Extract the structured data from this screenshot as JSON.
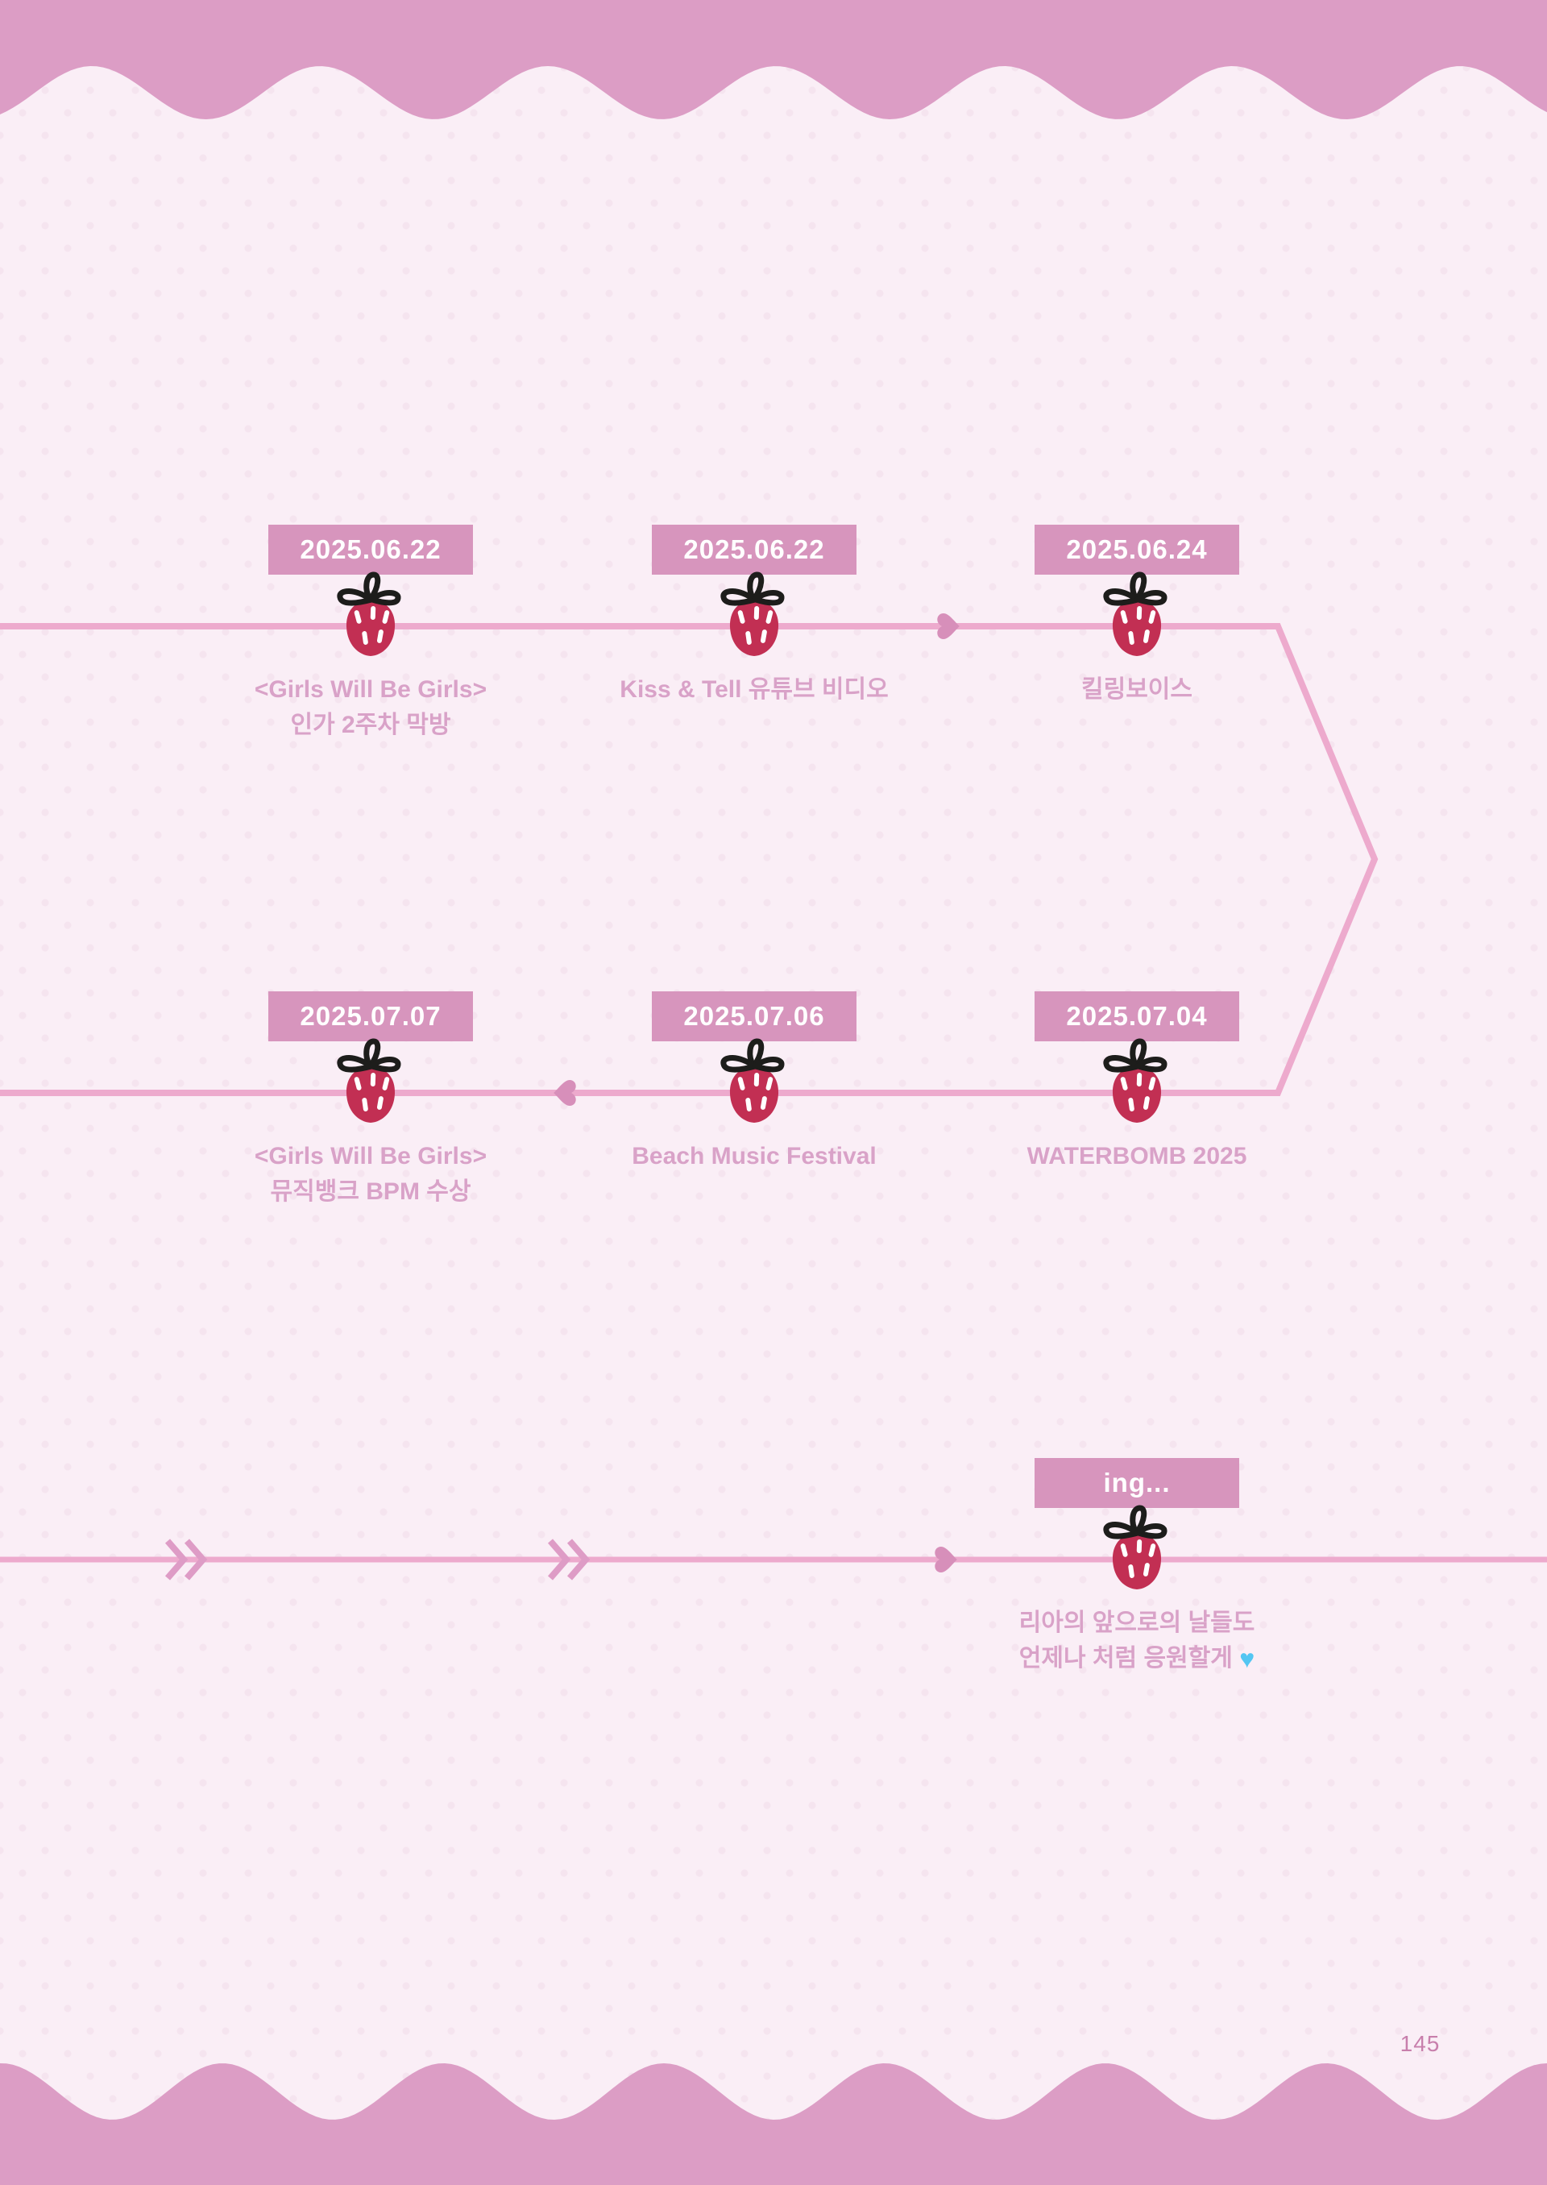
{
  "page": {
    "number": "145"
  },
  "colors": {
    "bg": "#faeef6",
    "dot": "#f5e4ef",
    "wave": "#dc9dc5",
    "badge": "#d795bd",
    "badge-text": "#ffffff",
    "line": "#edaacd",
    "heart": "#d78fba",
    "chevron": "#de9cc6",
    "caption": "#d9a2c8",
    "berry": "#c22f53",
    "berry-stem": "#1d1d1b",
    "seed": "#ffffff",
    "blue-heart": "#53c6f2",
    "page-number": "#c87fac"
  },
  "events": [
    {
      "date": "2025.06.22",
      "caption": [
        "<Girls Will Be Girls>",
        "인가 2주차 막방"
      ]
    },
    {
      "date": "2025.06.22",
      "caption": [
        "Kiss & Tell 유튜브 비디오"
      ]
    },
    {
      "date": "2025.06.24",
      "caption": [
        "킬링보이스"
      ]
    },
    {
      "date": "2025.07.07",
      "caption": [
        "<Girls Will Be Girls>",
        "뮤직뱅크 BPM 수상"
      ]
    },
    {
      "date": "2025.07.06",
      "caption": [
        "Beach Music Festival"
      ]
    },
    {
      "date": "2025.07.04",
      "caption": [
        "WATERBOMB 2025"
      ]
    },
    {
      "date": "ing...",
      "caption": [
        "리아의 앞으로의 날들도",
        "언제나 처럼 응원할게"
      ]
    }
  ],
  "icons": {
    "heart": "♥"
  }
}
